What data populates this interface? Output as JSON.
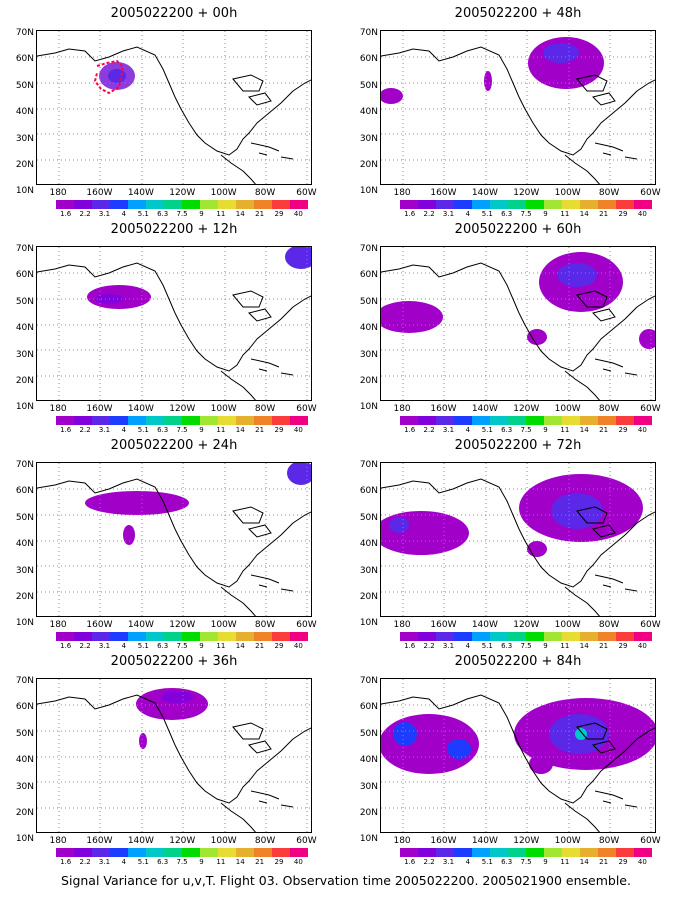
{
  "panels": [
    {
      "title": "2005022200 + 00h"
    },
    {
      "title": "2005022200 + 48h"
    },
    {
      "title": "2005022200 + 12h"
    },
    {
      "title": "2005022200 + 60h"
    },
    {
      "title": "2005022200 + 24h"
    },
    {
      "title": "2005022200 + 72h"
    },
    {
      "title": "2005022200 + 36h"
    },
    {
      "title": "2005022200 + 84h"
    }
  ],
  "lat_labels": [
    "70N",
    "60N",
    "50N",
    "40N",
    "30N",
    "20N",
    "10N"
  ],
  "lon_labels": [
    "180",
    "160W",
    "140W",
    "120W",
    "100W",
    "80W",
    "60W"
  ],
  "colorbar": {
    "labels": [
      "1.6",
      "2.2",
      "3.1",
      "4",
      "5.1",
      "6.3",
      "7.5",
      "9",
      "11",
      "14",
      "21",
      "29",
      "40"
    ],
    "colors": [
      "#a000c8",
      "#8200dc",
      "#5a28e6",
      "#1e3cff",
      "#00a0ff",
      "#00c8c8",
      "#00d28c",
      "#00dc00",
      "#a0e632",
      "#e6dc32",
      "#e6af2d",
      "#f08228",
      "#fa3c3c",
      "#f00082"
    ]
  },
  "caption": "Signal Variance for u,v,T. Flight 03. Observation time 2005022200. 2005021900 ensemble."
}
